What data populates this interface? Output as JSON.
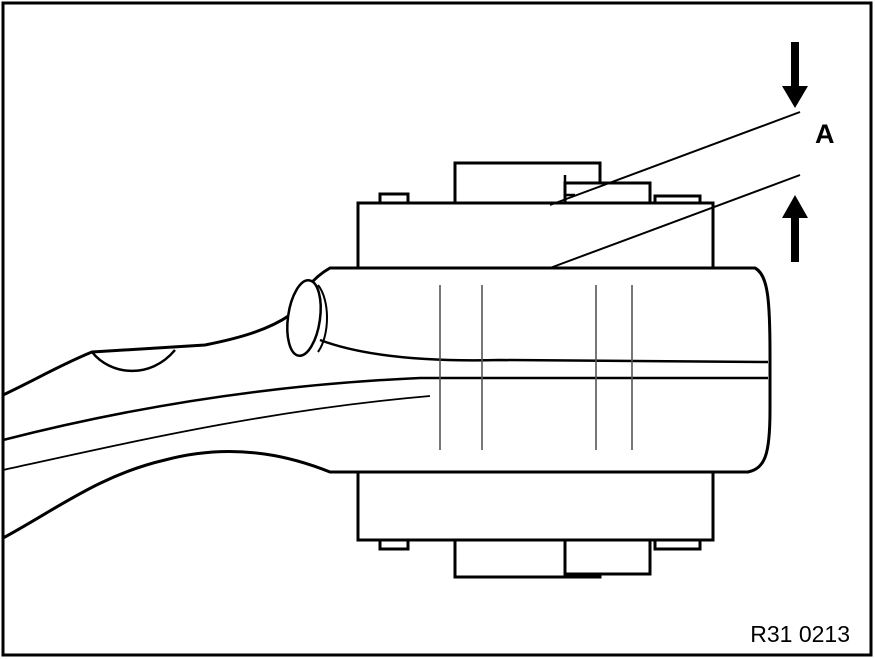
{
  "callout": {
    "label": "A",
    "meaning": ""
  },
  "reference_code": "R31 0213",
  "colors": {
    "ink": "#000000",
    "paper": "#ffffff",
    "fill": "#ffffff"
  }
}
